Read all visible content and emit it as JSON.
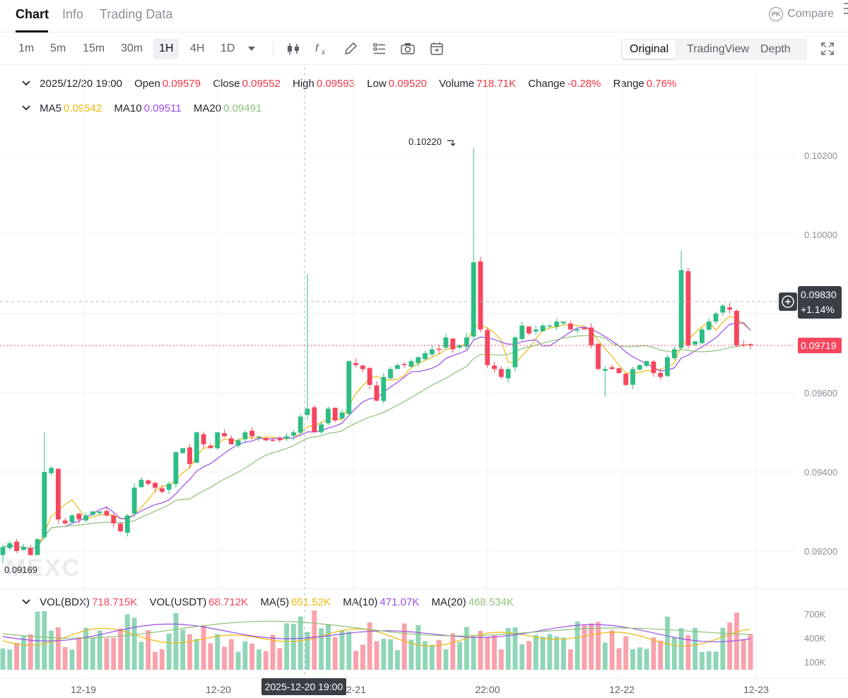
{
  "tabs": {
    "chart": "Chart",
    "info": "Info",
    "trading_data": "Trading Data",
    "compare": "Compare",
    "compare_badge": "PK"
  },
  "toolbar": {
    "intervals": [
      "1m",
      "5m",
      "15m",
      "30m",
      "1H",
      "4H",
      "1D"
    ],
    "active_interval": "1H",
    "views": [
      "Original",
      "TradingView",
      "Depth"
    ],
    "active_view": "Original"
  },
  "ohlc": {
    "datetime": "2025/12/20 19:00",
    "open_label": "Open",
    "open": "0.09579",
    "close_label": "Close",
    "close": "0.09552",
    "high_label": "High",
    "high": "0.09593",
    "low_label": "Low",
    "low": "0.09520",
    "volume_label": "Volume",
    "volume": "718.71K",
    "change_label": "Change",
    "change": "-0.28%",
    "range_label": "Range",
    "range": "0.76%"
  },
  "ma": {
    "ma5_label": "MA5",
    "ma5": "0.09542",
    "ma10_label": "MA10",
    "ma10": "0.09511",
    "ma20_label": "MA20",
    "ma20": "0.09491"
  },
  "vol": {
    "bdx_label": "VOL(BDX)",
    "bdx": "718.715K",
    "usdt_label": "VOL(USDT)",
    "usdt": "68.712K",
    "ma5_label": "MA(5)",
    "ma5": "651.52K",
    "ma10_label": "MA(10)",
    "ma10": "471.07K",
    "ma20_label": "MA(20)",
    "ma20": "468.534K"
  },
  "price_axis": {
    "ticks": [
      "0.10200",
      "0.10000",
      "0.09800",
      "0.09600",
      "0.09400",
      "0.09200"
    ],
    "crosshair_price": "0.09830",
    "crosshair_change": "+1.14%",
    "last_price": "0.09719",
    "high_marker": "0.10220",
    "low_marker": "0.09169"
  },
  "volume_axis": {
    "ticks": [
      "700K",
      "400K",
      "100K"
    ]
  },
  "time_axis": {
    "labels": [
      "12-19",
      "12-20",
      "12-21",
      "22:00",
      "12-22",
      "12-23"
    ],
    "crosshair_time": "2025-12-20 19:00"
  },
  "watermark": "MEXC",
  "colors": {
    "up": "#2ebd85",
    "down": "#f6465d",
    "ma5": "#f0b90b",
    "ma10": "#9b4dea",
    "ma20": "#8fc27a"
  },
  "chart_data": {
    "type": "candlestick",
    "interval": "1H",
    "price_range": [
      0.0912,
      0.1027
    ],
    "closes": [
      0.0921,
      0.0922,
      0.092,
      0.0921,
      0.0919,
      0.0923,
      0.094,
      0.0941,
      0.0928,
      0.0927,
      0.0929,
      0.0928,
      0.0929,
      0.093,
      0.093,
      0.0929,
      0.0927,
      0.0925,
      0.0929,
      0.0936,
      0.0938,
      0.0937,
      0.0936,
      0.0935,
      0.0937,
      0.0945,
      0.0946,
      0.0942,
      0.095,
      0.0947,
      0.0946,
      0.095,
      0.0949,
      0.0947,
      0.0948,
      0.095,
      0.0949,
      0.0949,
      0.0948,
      0.0948,
      0.0948,
      0.0949,
      0.095,
      0.0954,
      0.0956,
      0.095,
      0.0952,
      0.0956,
      0.0953,
      0.0955,
      0.0968,
      0.0967,
      0.0966,
      0.0962,
      0.0958,
      0.0964,
      0.0966,
      0.0967,
      0.0967,
      0.0968,
      0.0969,
      0.097,
      0.0971,
      0.0971,
      0.0974,
      0.0971,
      0.0972,
      0.0974,
      0.0993,
      0.0976,
      0.0967,
      0.0966,
      0.0964,
      0.0966,
      0.0974,
      0.0977,
      0.0975,
      0.0976,
      0.0977,
      0.0977,
      0.0978,
      0.0978,
      0.0976,
      0.0976,
      0.0976,
      0.0972,
      0.0966,
      0.0966,
      0.0966,
      0.0965,
      0.0962,
      0.0966,
      0.0967,
      0.0968,
      0.0965,
      0.0964,
      0.0969,
      0.0971,
      0.0991,
      0.0972,
      0.0973,
      0.0976,
      0.0978,
      0.098,
      0.0982,
      0.0981,
      0.0972,
      0.0972,
      0.0972
    ]
  }
}
